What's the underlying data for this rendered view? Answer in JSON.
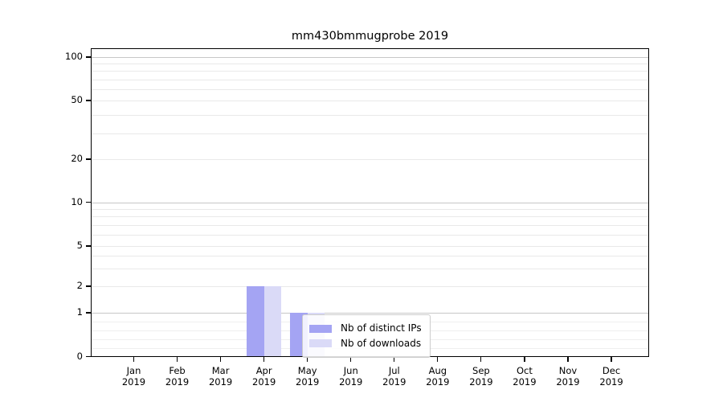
{
  "chart_data": {
    "type": "bar",
    "title": "mm430bmmugprobe 2019",
    "categories": [
      "Jan",
      "Feb",
      "Mar",
      "Apr",
      "May",
      "Jun",
      "Jul",
      "Aug",
      "Sep",
      "Oct",
      "Nov",
      "Dec"
    ],
    "x_year_label": "2019",
    "series": [
      {
        "name": "Nb of distinct IPs",
        "color": "#a4a4f3",
        "values": [
          0,
          0,
          0,
          2,
          1,
          0,
          0,
          0,
          0,
          0,
          0,
          0
        ]
      },
      {
        "name": "Nb of downloads",
        "color": "#dadaf7",
        "values": [
          0,
          0,
          0,
          2,
          1,
          0,
          0,
          0,
          0,
          0,
          0,
          0
        ]
      }
    ],
    "y_axis": {
      "scale": "log above 1, linear 0-1 (symlog-like)",
      "tick_values": [
        0,
        1,
        2,
        5,
        10,
        20,
        50,
        100
      ],
      "tick_labels": [
        "0",
        "1",
        "2",
        "5",
        "10",
        "20",
        "50",
        "100"
      ],
      "major_gridlines": [
        1,
        10,
        100
      ],
      "minor_gridlines": [
        2,
        3,
        4,
        5,
        6,
        7,
        8,
        9,
        20,
        30,
        40,
        50,
        60,
        70,
        80,
        90
      ],
      "sub_unit_gridlines": [
        0.2,
        0.4,
        0.6,
        0.8
      ],
      "ylim": [
        0,
        100
      ]
    },
    "legend": {
      "entries": [
        "Nb of distinct IPs",
        "Nb of downloads"
      ],
      "location": "lower-right-inside"
    },
    "grid": "horizontal",
    "colors": {
      "grid_major": "#c7c7c7",
      "grid_minor": "#e9e9e9",
      "axis": "#000000",
      "background": "#ffffff"
    }
  }
}
